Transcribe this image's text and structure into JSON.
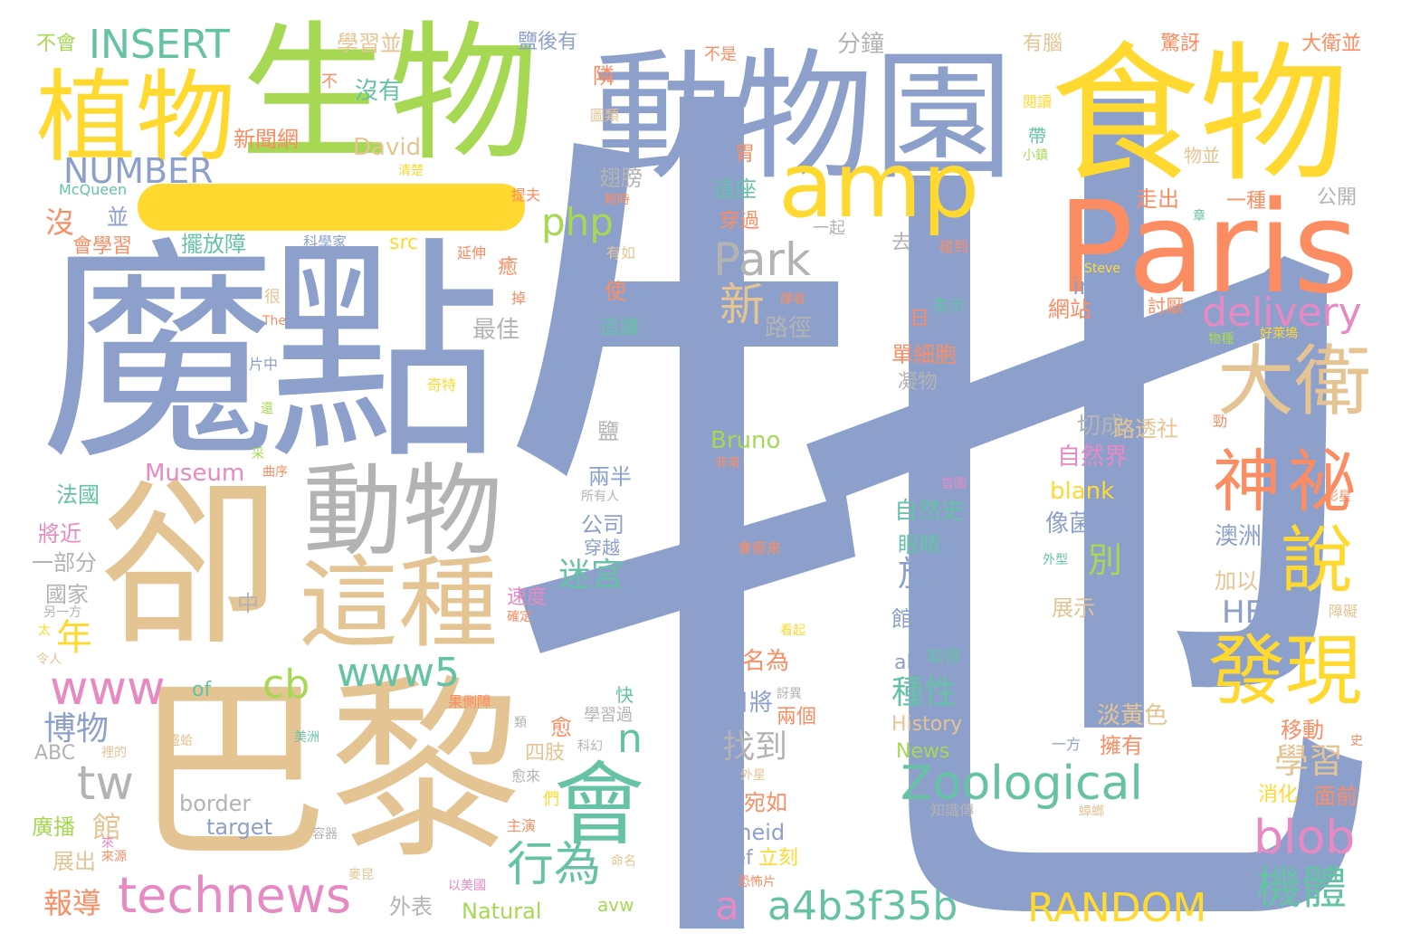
{
  "words": [
    {
      "text": "牠",
      "color": "#8da0cb"
    },
    {
      "text": "魔",
      "color": "#8da0cb"
    },
    {
      "text": "點",
      "color": "#8da0cb"
    },
    {
      "text": "卻",
      "color": "#e5c494"
    },
    {
      "text": "巴黎",
      "color": "#e5c494"
    },
    {
      "text": "生物",
      "color": "#a6d854"
    },
    {
      "text": "動物園",
      "color": "#8da0cb"
    },
    {
      "text": "食物",
      "color": "#ffd92f"
    },
    {
      "text": "Paris",
      "color": "#fc8d62"
    },
    {
      "text": "植物",
      "color": "#ffd92f"
    },
    {
      "text": "動物",
      "color": "#b3b3b3"
    },
    {
      "text": "這種",
      "color": "#e5c494"
    },
    {
      "text": "amp",
      "color": "#ffd92f"
    },
    {
      "text": "大衛",
      "color": "#e5c494"
    },
    {
      "text": "神祕",
      "color": "#fc8d62"
    },
    {
      "text": "發現",
      "color": "#ffd92f"
    },
    {
      "text": "說",
      "color": "#ffd92f"
    },
    {
      "text": "會",
      "color": "#66c2a5"
    },
    {
      "text": "Zoological",
      "color": "#66c2a5"
    },
    {
      "text": "a4b3f35b",
      "color": "#66c2a5"
    },
    {
      "text": "technews",
      "color": "#e78ac3"
    },
    {
      "text": "RANDOM",
      "color": "#ffd92f"
    },
    {
      "text": "blob",
      "color": "#e78ac3"
    },
    {
      "text": "機體",
      "color": "#66c2a5"
    },
    {
      "text": "www",
      "color": "#e78ac3"
    },
    {
      "text": "www5",
      "color": "#66c2a5"
    },
    {
      "text": "INSERT",
      "color": "#66c2a5"
    },
    {
      "text": "NUMBER",
      "color": "#8da0cb"
    },
    {
      "text": "php",
      "color": "#a6d854"
    },
    {
      "text": "Park",
      "color": "#b3b3b3"
    },
    {
      "text": "新",
      "color": "#e5c494"
    },
    {
      "text": "delivery",
      "color": "#e78ac3"
    },
    {
      "text": "tw",
      "color": "#b3b3b3"
    },
    {
      "text": "cb",
      "color": "#a6d854"
    },
    {
      "text": "行為",
      "color": "#66c2a5"
    },
    {
      "text": "a",
      "color": "#e78ac3"
    },
    {
      "text": "n",
      "color": "#66c2a5"
    },
    {
      "text": "迷宮",
      "color": "#66c2a5"
    },
    {
      "text": "年",
      "color": "#ffd92f"
    },
    {
      "text": "博物",
      "color": "#8da0cb"
    },
    {
      "text": "報導",
      "color": "#fc8d62"
    },
    {
      "text": "學習",
      "color": "#e5c494"
    },
    {
      "text": "HERE",
      "color": "#8da0cb"
    },
    {
      "text": "放在",
      "color": "#8da0cb"
    },
    {
      "text": "找到",
      "color": "#b3b3b3"
    },
    {
      "text": "種性",
      "color": "#66c2a5"
    },
    {
      "text": "別",
      "color": "#a6d854"
    },
    {
      "text": "沒有",
      "color": "#66c2a5"
    },
    {
      "text": "新聞網",
      "color": "#fc8d62"
    },
    {
      "text": "David",
      "color": "#e5c494"
    },
    {
      "text": "沒",
      "color": "#fc8d62"
    },
    {
      "text": "並",
      "color": "#8da0cb"
    },
    {
      "text": "會學習",
      "color": "#fc8d62"
    },
    {
      "text": "擺放障",
      "color": "#66c2a5"
    },
    {
      "text": "src",
      "color": "#ffd92f"
    },
    {
      "text": "McQueen",
      "color": "#66c2a5"
    },
    {
      "text": "不會",
      "color": "#a6d854"
    },
    {
      "text": "學習並",
      "color": "#e5c494"
    },
    {
      "text": "鹽後有",
      "color": "#8da0cb"
    },
    {
      "text": "不是",
      "color": "#fc8d62"
    },
    {
      "text": "分鐘",
      "color": "#b3b3b3"
    },
    {
      "text": "有腦",
      "color": "#e5c494"
    },
    {
      "text": "驚訝",
      "color": "#fc8d62"
    },
    {
      "text": "大衛並",
      "color": "#fc8d62"
    },
    {
      "text": "不",
      "color": "#fc8d62"
    },
    {
      "text": "隣",
      "color": "#fc8d62"
    },
    {
      "text": "圖類",
      "color": "#e5c494"
    },
    {
      "text": "閱讀",
      "color": "#ffd92f"
    },
    {
      "text": "帶",
      "color": "#66c2a5"
    },
    {
      "text": "物並",
      "color": "#e5c494"
    },
    {
      "text": "小鎮",
      "color": "#a6d854"
    },
    {
      "text": "胃",
      "color": "#fc8d62"
    },
    {
      "text": "翅膀",
      "color": "#b3b3b3"
    },
    {
      "text": "這座",
      "color": "#66c2a5"
    },
    {
      "text": "穿過",
      "color": "#fc8d62"
    },
    {
      "text": "一起",
      "color": "#b3b3b3"
    },
    {
      "text": "提夫",
      "color": "#fc8d62"
    },
    {
      "text": "輕時",
      "color": "#fc8d62"
    },
    {
      "text": "走出",
      "color": "#fc8d62"
    },
    {
      "text": "一種",
      "color": "#fc8d62"
    },
    {
      "text": "公開",
      "color": "#b3b3b3"
    },
    {
      "text": "章",
      "color": "#66c2a5"
    },
    {
      "text": "科學家",
      "color": "#8da0cb"
    },
    {
      "text": "延伸",
      "color": "#fc8d62"
    },
    {
      "text": "有如",
      "color": "#e5c494"
    },
    {
      "text": "去",
      "color": "#b3b3b3"
    },
    {
      "text": "碰到",
      "color": "#fc8d62"
    },
    {
      "text": "ck",
      "color": "#8da0cb"
    },
    {
      "text": "img",
      "color": "#8da0cb"
    },
    {
      "text": "Steve",
      "color": "#ffd92f"
    },
    {
      "text": "很",
      "color": "#e5c494"
    },
    {
      "text": "癒",
      "color": "#fc8d62"
    },
    {
      "text": "掉",
      "color": "#fc8d62"
    },
    {
      "text": "使",
      "color": "#fc8d62"
    },
    {
      "text": "表示",
      "color": "#66c2a5"
    },
    {
      "text": "譯者",
      "color": "#fc8d62"
    },
    {
      "text": "網站",
      "color": "#fc8d62"
    },
    {
      "text": "討厭",
      "color": "#fc8d62"
    },
    {
      "text": "The",
      "color": "#fc8d62"
    },
    {
      "text": "路徑",
      "color": "#b3b3b3"
    },
    {
      "text": "最佳",
      "color": "#b3b3b3"
    },
    {
      "text": "這讓",
      "color": "#66c2a5"
    },
    {
      "text": "日",
      "color": "#fc8d62"
    },
    {
      "text": "物種",
      "color": "#a6d854"
    },
    {
      "text": "好萊塢",
      "color": "#ffd92f"
    },
    {
      "text": "片中",
      "color": "#8da0cb"
    },
    {
      "text": "單細胞",
      "color": "#fc8d62"
    },
    {
      "text": "凝物",
      "color": "#b3b3b3"
    },
    {
      "text": "奇特",
      "color": "#ffd92f"
    },
    {
      "text": "還",
      "color": "#a6d854"
    },
    {
      "text": "勁",
      "color": "#fc8d62"
    },
    {
      "text": "鹽",
      "color": "#b3b3b3"
    },
    {
      "text": "切成",
      "color": "#b3b3b3"
    },
    {
      "text": "路透社",
      "color": "#e5c494"
    },
    {
      "text": "Bruno",
      "color": "#a6d854"
    },
    {
      "text": "自然界",
      "color": "#e78ac3"
    },
    {
      "text": "采",
      "color": "#a6d854"
    },
    {
      "text": "Museum",
      "color": "#e78ac3"
    },
    {
      "text": "曲序",
      "color": "#fc8d62"
    },
    {
      "text": "非常",
      "color": "#fc8d62"
    },
    {
      "text": "兩半",
      "color": "#8da0cb"
    },
    {
      "text": "首圖",
      "color": "#e78ac3"
    },
    {
      "text": "影星",
      "color": "#fc8d62"
    },
    {
      "text": "blank",
      "color": "#ffd92f"
    },
    {
      "text": "法國",
      "color": "#66c2a5"
    },
    {
      "text": "所有人",
      "color": "#b3b3b3"
    },
    {
      "text": "自然史",
      "color": "#66c2a5"
    },
    {
      "text": "像菌類",
      "color": "#8da0cb"
    },
    {
      "text": "澳洲",
      "color": "#8da0cb"
    },
    {
      "text": "公司",
      "color": "#8da0cb"
    },
    {
      "text": "穿越",
      "color": "#8da0cb"
    },
    {
      "text": "將近",
      "color": "#e78ac3"
    },
    {
      "text": "會癒來",
      "color": "#fc8d62"
    },
    {
      "text": "眼睛",
      "color": "#66c2a5"
    },
    {
      "text": "外型",
      "color": "#66c2a5"
    },
    {
      "text": "加以",
      "color": "#e5c494"
    },
    {
      "text": "一部分",
      "color": "#b3b3b3"
    },
    {
      "text": "國家",
      "color": "#b3b3b3"
    },
    {
      "text": "另一方",
      "color": "#b3b3b3"
    },
    {
      "text": "中",
      "color": "#b3b3b3"
    },
    {
      "text": "速度",
      "color": "#e78ac3"
    },
    {
      "text": "確定",
      "color": "#fc8d62"
    },
    {
      "text": "館長",
      "color": "#8da0cb"
    },
    {
      "text": "展示",
      "color": "#e5c494"
    },
    {
      "text": "障礙",
      "color": "#e5c494"
    },
    {
      "text": "太",
      "color": "#ffd92f"
    },
    {
      "text": "看起",
      "color": "#ffd92f"
    },
    {
      "text": "令人",
      "color": "#e5c494"
    },
    {
      "text": "名為",
      "color": "#fc8d62"
    },
    {
      "text": "取得",
      "color": "#66c2a5"
    },
    {
      "text": "alt",
      "color": "#8da0cb"
    },
    {
      "text": "of",
      "color": "#66c2a5"
    },
    {
      "text": "快",
      "color": "#66c2a5"
    },
    {
      "text": "日將",
      "color": "#8da0cb"
    },
    {
      "text": "訝異",
      "color": "#b3b3b3"
    },
    {
      "text": "果側障",
      "color": "#fc8d62"
    },
    {
      "text": "學習過",
      "color": "#b3b3b3"
    },
    {
      "text": "兩個",
      "color": "#fc8d62"
    },
    {
      "text": "History",
      "color": "#e5c494"
    },
    {
      "text": "淡黃色",
      "color": "#e5c494"
    },
    {
      "text": "移動",
      "color": "#fc8d62"
    },
    {
      "text": "愈",
      "color": "#fc8d62"
    },
    {
      "text": "類",
      "color": "#b3b3b3"
    },
    {
      "text": "史",
      "color": "#fc8d62"
    },
    {
      "text": "美洲",
      "color": "#66c2a5"
    },
    {
      "text": "ABC",
      "color": "#b3b3b3"
    },
    {
      "text": "裡的",
      "color": "#e5c494"
    },
    {
      "text": "盛蛤",
      "color": "#e5c494"
    },
    {
      "text": "News",
      "color": "#a6d854"
    },
    {
      "text": "一方",
      "color": "#8da0cb"
    },
    {
      "text": "擁有",
      "color": "#fc8d62"
    },
    {
      "text": "科幻",
      "color": "#b3b3b3"
    },
    {
      "text": "四肢",
      "color": "#e5c494"
    },
    {
      "text": "外星",
      "color": "#e5c494"
    },
    {
      "text": "消化",
      "color": "#ffd92f"
    },
    {
      "text": "面前",
      "color": "#fc8d62"
    },
    {
      "text": "宛如",
      "color": "#fc8d62"
    },
    {
      "text": "愈來",
      "color": "#b3b3b3"
    },
    {
      "text": "border",
      "color": "#b3b3b3"
    },
    {
      "text": "們",
      "color": "#ffd92f"
    },
    {
      "text": "知識傳",
      "color": "#b3b3b3"
    },
    {
      "text": "蟑螂",
      "color": "#e5c494"
    },
    {
      "text": "廣播",
      "color": "#a6d854"
    },
    {
      "text": "館",
      "color": "#e5c494"
    },
    {
      "text": "target",
      "color": "#8da0cb"
    },
    {
      "text": "主演",
      "color": "#fc8d62"
    },
    {
      "text": "zoneid",
      "color": "#8da0cb"
    },
    {
      "text": "容器",
      "color": "#b3b3b3"
    },
    {
      "text": "立刻",
      "color": "#ffd92f"
    },
    {
      "text": "展出",
      "color": "#e5c494"
    },
    {
      "text": "來",
      "color": "#e78ac3"
    },
    {
      "text": "來源",
      "color": "#fc8d62"
    },
    {
      "text": "href",
      "color": "#8da0cb"
    },
    {
      "text": "命名",
      "color": "#e5c494"
    },
    {
      "text": "恐怖片",
      "color": "#fc8d62"
    },
    {
      "text": "麥昆",
      "color": "#e5c494"
    },
    {
      "text": "以美國",
      "color": "#e78ac3"
    },
    {
      "text": "外表",
      "color": "#b3b3b3"
    },
    {
      "text": "Natural",
      "color": "#a6d854"
    },
    {
      "text": "avw",
      "color": "#a6d854"
    },
    {
      "text": "清楚",
      "color": "#ffd92f"
    }
  ]
}
